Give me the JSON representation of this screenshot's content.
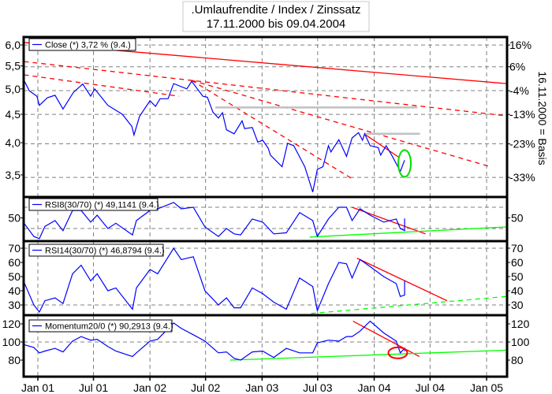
{
  "chart_data": [
    {
      "type": "line",
      "title": ".Umlaufrendite / Index / Zinssatz",
      "subtitle": "17.11.2000 bis 09.04.2004",
      "right_axis_label": "16.11.2000 = Basis",
      "y_scale": "log",
      "ylim": [
        3.2,
        6.2
      ],
      "yticks": [
        "6,0",
        "5,5",
        "5,0",
        "4,5",
        "4,0",
        "3,5"
      ],
      "ytick_values": [
        6.0,
        5.5,
        5.0,
        4.5,
        4.0,
        3.5
      ],
      "right_ticks": [
        "16%",
        "6%",
        "-4%",
        "-13%",
        "-23%",
        "-33%"
      ],
      "right_tick_values": [
        16,
        6,
        -4,
        -13,
        -23,
        -33
      ],
      "basis_value": 5.17,
      "grid": true,
      "legend_position": "top-left",
      "series": [
        {
          "name": "Close (*) 3,72 % (9.4.)",
          "color": "#0000ff",
          "x": [
            "2000-11-17",
            "2000-12-04",
            "2000-12-29",
            "2001-01-06",
            "2001-02-01",
            "2001-02-26",
            "2001-03-24",
            "2001-04-27",
            "2001-05-27",
            "2001-06-22",
            "2001-07-05",
            "2001-08-17",
            "2001-10-03",
            "2001-11-03",
            "2001-11-10",
            "2001-11-28",
            "2002-01-01",
            "2002-01-19",
            "2002-02-03",
            "2002-03-01",
            "2002-03-19",
            "2002-05-01",
            "2002-05-17",
            "2002-06-22",
            "2002-07-07",
            "2002-07-25",
            "2002-08-12",
            "2002-08-25",
            "2002-09-07",
            "2002-10-02",
            "2002-10-28",
            "2002-11-05",
            "2002-11-30",
            "2002-12-18",
            "2003-01-03",
            "2003-01-21",
            "2003-01-28",
            "2003-03-07",
            "2003-03-25",
            "2003-04-14",
            "2003-05-20",
            "2003-06-15",
            "2003-06-30",
            "2003-07-18",
            "2003-08-05",
            "2003-08-13",
            "2003-09-08",
            "2003-10-03",
            "2003-10-21",
            "2003-11-11",
            "2003-11-24",
            "2003-12-01",
            "2003-12-19",
            "2004-01-14",
            "2004-01-22",
            "2004-02-09",
            "2004-02-27",
            "2004-03-23",
            "2004-03-26",
            "2004-04-09"
          ],
          "values": [
            5.18,
            4.96,
            4.85,
            4.67,
            4.82,
            4.87,
            4.6,
            4.93,
            5.1,
            4.85,
            5.0,
            4.67,
            4.5,
            4.28,
            4.13,
            4.46,
            4.76,
            4.65,
            4.8,
            4.8,
            5.11,
            5.0,
            5.16,
            4.85,
            4.83,
            4.54,
            4.43,
            4.53,
            4.22,
            4.15,
            4.38,
            4.24,
            4.26,
            4.01,
            4.04,
            3.91,
            3.8,
            3.62,
            3.99,
            3.95,
            3.62,
            3.26,
            3.58,
            3.62,
            3.95,
            3.85,
            4.05,
            3.78,
            4.08,
            4.17,
            4.04,
            4.15,
            3.95,
            3.92,
            3.8,
            3.95,
            3.8,
            3.58,
            3.55,
            3.72
          ]
        }
      ],
      "trendlines": [
        {
          "color": "#ff0000",
          "style": "solid",
          "from": [
            "2000-11-17",
            6.06
          ],
          "to": [
            "2005-03-08",
            5.11
          ]
        },
        {
          "color": "#ff0000",
          "style": "dashed",
          "from": [
            "2000-11-17",
            5.6
          ],
          "to": [
            "2005-03-08",
            4.47
          ]
        },
        {
          "color": "#ff0000",
          "style": "dashed",
          "from": [
            "2000-11-17",
            5.3
          ],
          "to": [
            "2002-04-06",
            4.85
          ]
        },
        {
          "color": "#ff0000",
          "style": "dashed",
          "from": [
            "2002-05-17",
            5.18
          ],
          "to": [
            "2005-01-14",
            3.62
          ]
        },
        {
          "color": "#ff0000",
          "style": "dashed",
          "from": [
            "2002-05-17",
            5.18
          ],
          "to": [
            "2003-10-19",
            3.45
          ]
        },
        {
          "color": "#ff0000",
          "style": "solid",
          "from": [
            "2003-11-29",
            4.15
          ],
          "to": [
            "2004-03-23",
            3.76
          ]
        },
        {
          "color": "#c0c0c0",
          "style": "solid",
          "from": [
            "2002-08-02",
            4.63
          ],
          "to": [
            "2004-05-21",
            4.63
          ]
        },
        {
          "color": "#c0c0c0",
          "style": "solid",
          "from": [
            "2003-11-29",
            4.15
          ],
          "to": [
            "2004-05-29",
            4.15
          ]
        }
      ],
      "highlight": {
        "shape": "ellipse",
        "color": "#00dd00",
        "center": [
          "2004-04-09",
          3.67
        ]
      }
    },
    {
      "type": "line",
      "ylim": [
        6,
        88
      ],
      "yticks": [
        "50"
      ],
      "ytick_values": [
        50
      ],
      "gridlines": [
        30,
        70
      ],
      "series": [
        {
          "name": "RSI8(30/70) (*) 49,1141 (9.4.)",
          "color": "#0000ff",
          "values": [
            40,
            15,
            11,
            34,
            45,
            26,
            64,
            64,
            42,
            55,
            30,
            40,
            18,
            45,
            64,
            67,
            79,
            67,
            70,
            33,
            15,
            30,
            20,
            18,
            48,
            42,
            20,
            22,
            60,
            45,
            15,
            48,
            70,
            70,
            45,
            67,
            55,
            42,
            48,
            30,
            26,
            49
          ]
        }
      ],
      "trendlines": [
        {
          "color": "#ff0000",
          "style": "solid",
          "from": [
            "2003-10-21",
            70
          ],
          "to": [
            "2004-06-16",
            20
          ]
        },
        {
          "color": "#00ff00",
          "style": "solid",
          "from": [
            "2003-06-05",
            14
          ],
          "to": [
            "2005-03-08",
            33
          ]
        }
      ]
    },
    {
      "type": "line",
      "ylim": [
        24,
        74
      ],
      "yticks": [
        "70",
        "60",
        "50",
        "40",
        "30"
      ],
      "ytick_values": [
        70,
        60,
        50,
        40,
        30
      ],
      "gridlines": [
        30,
        70
      ],
      "series": [
        {
          "name": "RSI14(30/70) (*) 46,8794 (9.4.)",
          "color": "#0000ff",
          "values": [
            46,
            30,
            25,
            33,
            35,
            31,
            52,
            58,
            47,
            52,
            40,
            42,
            27,
            42,
            55,
            52,
            70,
            62,
            64,
            40,
            30,
            35,
            28,
            28,
            42,
            38,
            32,
            27,
            49,
            43,
            26,
            45,
            60,
            59,
            49,
            62,
            57,
            50,
            45,
            36,
            37,
            47
          ]
        }
      ],
      "trendlines": [
        {
          "color": "#ff0000",
          "style": "solid",
          "from": [
            "2003-11-06",
            63
          ],
          "to": [
            "2004-08-25",
            33
          ]
        },
        {
          "color": "#00ff00",
          "style": "dashed",
          "from": [
            "2003-06-10",
            24
          ],
          "to": [
            "2005-03-08",
            36
          ]
        }
      ]
    },
    {
      "type": "line",
      "ylim": [
        62,
        129
      ],
      "yticks": [
        "120",
        "100",
        "80"
      ],
      "ytick_values": [
        120,
        100,
        80
      ],
      "gridlines": [
        100
      ],
      "series": [
        {
          "name": "Momentum20/0 (*) 90,2913 (9.4.)",
          "color": "#0000ff",
          "values": [
            97,
            94,
            88,
            90,
            93,
            89,
            101,
            106,
            102,
            103,
            95,
            90,
            84,
            88,
            101,
            103,
            121,
            115,
            108,
            101,
            88,
            89,
            82,
            80,
            89,
            90,
            83,
            93,
            88,
            88,
            99,
            102,
            101,
            106,
            106,
            112,
            123,
            110,
            101,
            88,
            93,
            90
          ]
        }
      ],
      "trendlines": [
        {
          "color": "#ff0000",
          "style": "solid",
          "from": [
            "2003-10-24",
            123
          ],
          "to": [
            "2004-05-27",
            84
          ]
        },
        {
          "color": "#00ff00",
          "style": "solid",
          "from": [
            "2002-09-19",
            80
          ],
          "to": [
            "2005-03-08",
            91
          ]
        }
      ],
      "highlight": {
        "shape": "ellipse",
        "color": "#ff0000",
        "center": [
          "2004-03-18",
          88
        ]
      }
    }
  ],
  "indicator_dates": [
    "2000-11-17",
    "2000-12-19",
    "2001-01-06",
    "2001-01-24",
    "2001-02-26",
    "2001-03-24",
    "2001-04-24",
    "2001-05-22",
    "2001-06-22",
    "2001-07-13",
    "2001-08-17",
    "2001-09-12",
    "2001-11-05",
    "2001-11-18",
    "2002-01-01",
    "2002-01-26",
    "2002-03-19",
    "2002-04-13",
    "2002-05-22",
    "2002-06-29",
    "2002-08-12",
    "2002-09-07",
    "2002-10-02",
    "2002-10-23",
    "2002-11-30",
    "2003-01-03",
    "2003-02-08",
    "2003-03-21",
    "2003-05-03",
    "2003-06-15",
    "2003-06-30",
    "2003-08-05",
    "2003-09-08",
    "2003-10-03",
    "2003-10-21",
    "2003-11-16",
    "2003-12-19",
    "2004-02-01",
    "2004-03-13",
    "2004-03-26",
    "2004-04-09",
    "2004-04-09"
  ],
  "x_axis": {
    "ticks": [
      "Jan 01",
      "Jul 01",
      "Jan 02",
      "Jul 02",
      "Jan 03",
      "Jul 03",
      "Jan 04",
      "Jul 04",
      "Jan 05"
    ],
    "tick_dates": [
      "2001-01-01",
      "2001-07-01",
      "2002-01-01",
      "2002-07-01",
      "2003-01-01",
      "2003-07-01",
      "2004-01-01",
      "2004-07-01",
      "2005-01-01"
    ],
    "range": [
      "2000-11-17",
      "2005-03-08"
    ]
  }
}
